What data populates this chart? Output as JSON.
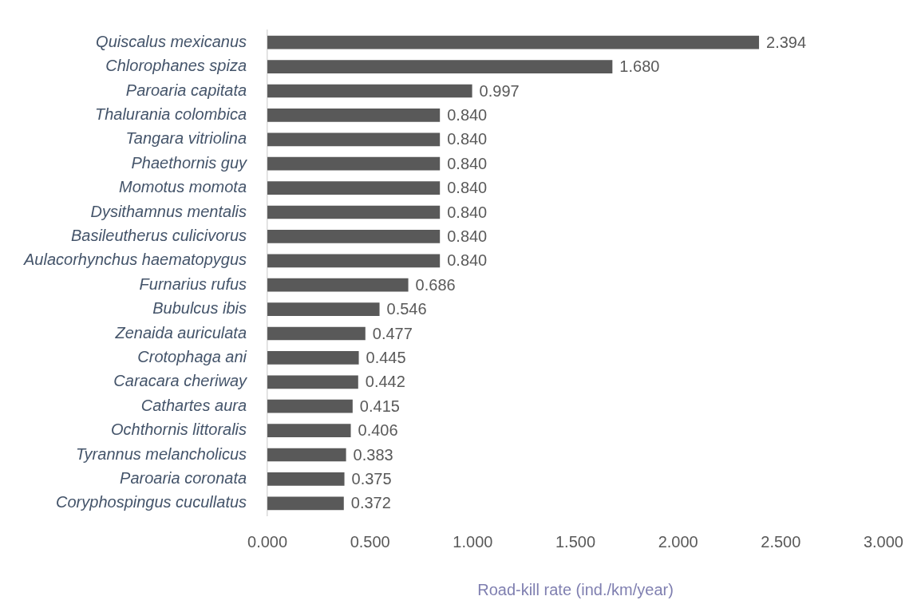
{
  "chart_data": {
    "type": "bar",
    "orientation": "horizontal",
    "xlabel": "Road-kill rate (ind./km/year)",
    "categories": [
      "Quiscalus mexicanus",
      "Chlorophanes spiza",
      "Paroaria capitata",
      "Thalurania colombica",
      "Tangara vitriolina",
      "Phaethornis guy",
      "Momotus momota",
      "Dysithamnus mentalis",
      "Basileutherus culicivorus",
      "Aulacorhynchus haematopygus",
      "Furnarius rufus",
      "Bubulcus ibis",
      "Zenaida auriculata",
      "Crotophaga ani",
      "Caracara cheriway",
      "Cathartes aura",
      "Ochthornis littoralis",
      "Tyrannus melancholicus",
      "Paroaria coronata",
      "Coryphospingus cucullatus"
    ],
    "values": [
      2.394,
      1.68,
      0.997,
      0.84,
      0.84,
      0.84,
      0.84,
      0.84,
      0.84,
      0.84,
      0.686,
      0.546,
      0.477,
      0.445,
      0.442,
      0.415,
      0.406,
      0.383,
      0.375,
      0.372
    ],
    "value_labels": [
      "2.394",
      "1.680",
      "0.997",
      "0.840",
      "0.840",
      "0.840",
      "0.840",
      "0.840",
      "0.840",
      "0.840",
      "0.686",
      "0.546",
      "0.477",
      "0.445",
      "0.442",
      "0.415",
      "0.406",
      "0.383",
      "0.375",
      "0.372"
    ],
    "color": "#595959",
    "xlim": [
      0,
      3
    ],
    "xticks": [
      {
        "value": 0,
        "label": "0.000"
      },
      {
        "value": 0.5,
        "label": "0.500"
      },
      {
        "value": 1,
        "label": "1.000"
      },
      {
        "value": 1.5,
        "label": "1.500"
      },
      {
        "value": 2,
        "label": "2.000"
      },
      {
        "value": 2.5,
        "label": "2.500"
      },
      {
        "value": 3,
        "label": "3.000"
      }
    ]
  }
}
